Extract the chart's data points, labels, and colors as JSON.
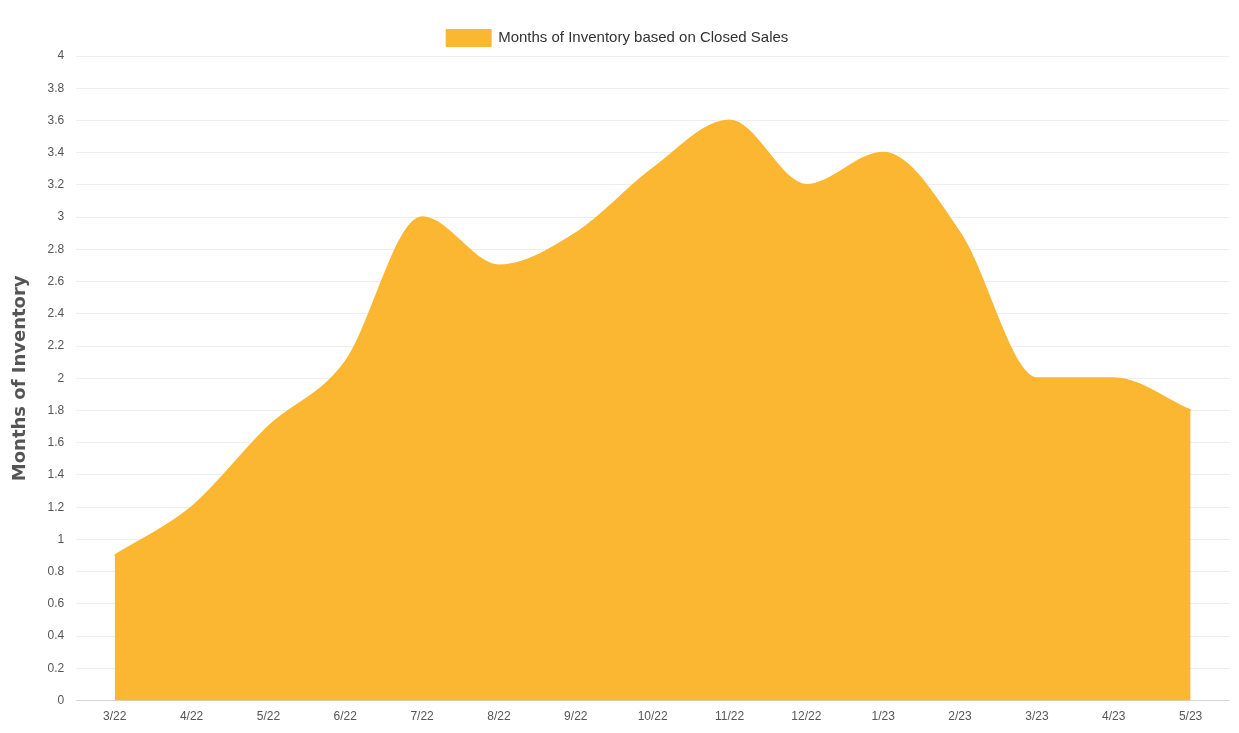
{
  "chart_data": {
    "type": "area",
    "ylabel": "Months of Inventory",
    "legend": "top",
    "grid": "y",
    "marker": "none",
    "categories": [
      "3/22",
      "4/22",
      "5/22",
      "6/22",
      "7/22",
      "8/22",
      "9/22",
      "10/22",
      "11/22",
      "12/22",
      "1/23",
      "2/23",
      "3/23",
      "4/23",
      "5/23"
    ],
    "series": [
      {
        "name": "Months of Inventory based on Closed Sales",
        "color": "#fbb731",
        "values": [
          0.9,
          1.2,
          1.7,
          2.1,
          3.0,
          2.7,
          2.9,
          3.3,
          3.6,
          3.2,
          3.4,
          2.9,
          2.0,
          2.0,
          1.8
        ]
      }
    ],
    "ylim": [
      0,
      4
    ],
    "yticks": [
      0,
      0.2,
      0.4,
      0.6,
      0.8,
      1,
      1.2,
      1.4,
      1.6,
      1.8,
      2,
      2.2,
      2.4,
      2.6,
      2.8,
      3,
      3.2,
      3.4,
      3.6,
      3.8,
      4
    ]
  }
}
